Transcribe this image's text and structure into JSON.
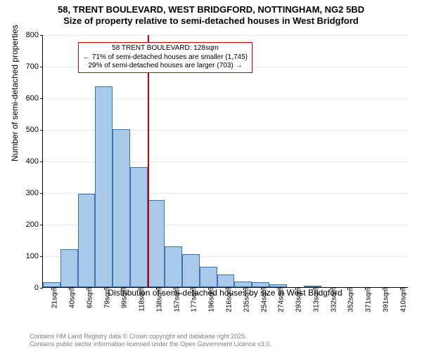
{
  "title": {
    "line1": "58, TRENT BOULEVARD, WEST BRIDGFORD, NOTTINGHAM, NG2 5BD",
    "line2": "Size of property relative to semi-detached houses in West Bridgford",
    "fontsize": 13,
    "fontweight": "bold"
  },
  "chart": {
    "type": "histogram",
    "ylabel": "Number of semi-detached properties",
    "xlabel": "Distribution of semi-detached houses by size in West Bridgford",
    "ylim": [
      0,
      800
    ],
    "ytick_step": 100,
    "background_color": "#ffffff",
    "grid_color": "#e8e8e8",
    "axis_color": "#000000",
    "bar_fill": "#a9c9e8",
    "bar_border": "#3b74b5",
    "label_fontsize": 12,
    "tick_fontsize": 11,
    "xtick_fontsize": 10,
    "bins": [
      {
        "label": "21sqm",
        "value": 15
      },
      {
        "label": "40sqm",
        "value": 120
      },
      {
        "label": "60sqm",
        "value": 295
      },
      {
        "label": "79sqm",
        "value": 635
      },
      {
        "label": "99sqm",
        "value": 500
      },
      {
        "label": "118sqm",
        "value": 380
      },
      {
        "label": "138sqm",
        "value": 275
      },
      {
        "label": "157sqm",
        "value": 130
      },
      {
        "label": "177sqm",
        "value": 105
      },
      {
        "label": "196sqm",
        "value": 65
      },
      {
        "label": "216sqm",
        "value": 40
      },
      {
        "label": "235sqm",
        "value": 18
      },
      {
        "label": "254sqm",
        "value": 15
      },
      {
        "label": "274sqm",
        "value": 10
      },
      {
        "label": "293sqm",
        "value": 0
      },
      {
        "label": "313sqm",
        "value": 4
      },
      {
        "label": "332sqm",
        "value": 0
      },
      {
        "label": "352sqm",
        "value": 0
      },
      {
        "label": "371sqm",
        "value": 0
      },
      {
        "label": "391sqm",
        "value": 0
      },
      {
        "label": "410sqm",
        "value": 0
      }
    ],
    "marker": {
      "position_sqm": 128,
      "color": "#cc0000",
      "bin_index_before": 5
    },
    "annotation": {
      "line1": "58 TRENT BOULEVARD: 128sqm",
      "line2": "← 71% of semi-detached houses are smaller (1,745)",
      "line3": "29% of semi-detached houses are larger (703) →",
      "border_color": "#cc0000",
      "background": "#ffffff",
      "fontsize": 10
    }
  },
  "footer": {
    "line1": "Contains HM Land Registry data © Crown copyright and database right 2025.",
    "line2": "Contains public sector information licensed under the Open Government Licence v3.0.",
    "color": "#808080",
    "fontsize": 9
  }
}
